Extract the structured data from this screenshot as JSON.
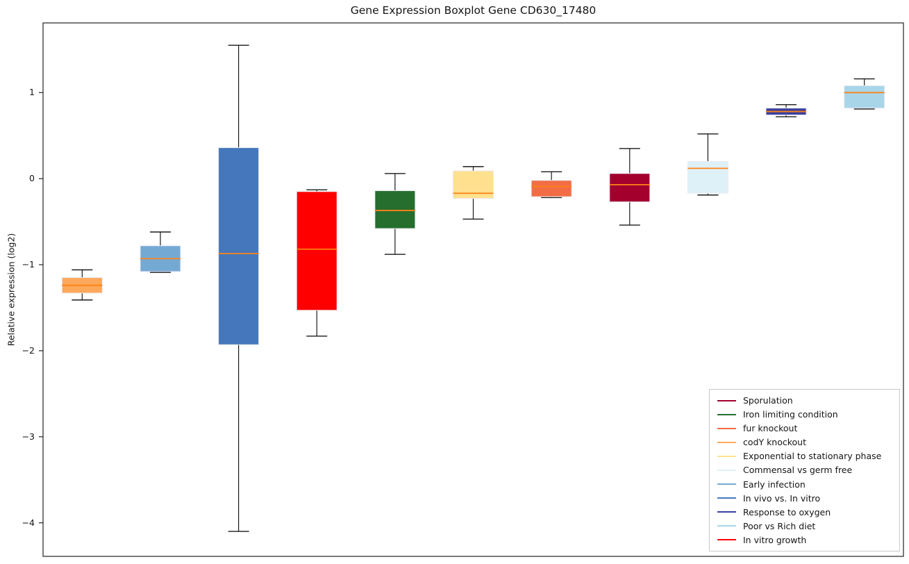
{
  "figure": {
    "title": "Gene Expression Boxplot Gene CD630_17480",
    "background_color": "#ffffff"
  },
  "chart_data": {
    "type": "boxplot",
    "title": "Gene Expression Boxplot Gene CD630_17480",
    "xlabel": "",
    "ylabel": "Relative expression (log2)",
    "ylim": [
      -4.39,
      1.81
    ],
    "yticks": [
      1,
      0,
      -1,
      -2,
      -3,
      -4
    ],
    "grid": false,
    "x_tick_labels_visible": false,
    "median_color": "#ff8215",
    "whisker_color": "#1a1a1a",
    "box_edge_color": "#e9e9f2",
    "axis_color": "#222222",
    "legend_position": "lower right",
    "boxes": [
      {
        "label": "codY knockout",
        "color": "#FDA85A",
        "whisker_low": -1.41,
        "q1": -1.33,
        "median": -1.24,
        "q3": -1.15,
        "whisker_high": -1.06
      },
      {
        "label": "Early infection",
        "color": "#74A9D4",
        "whisker_low": -1.09,
        "q1": -1.08,
        "median": -0.93,
        "q3": -0.78,
        "whisker_high": -0.62
      },
      {
        "label": "In vivo vs. In vitro",
        "color": "#4477BB",
        "whisker_low": -4.1,
        "q1": -1.93,
        "median": -0.87,
        "q3": 0.36,
        "whisker_high": 1.55
      },
      {
        "label": "In vitro growth",
        "color": "#FE0000",
        "whisker_low": -1.83,
        "q1": -1.53,
        "median": -0.82,
        "q3": -0.15,
        "whisker_high": -0.13
      },
      {
        "label": "Iron limiting condition",
        "color": "#266E2E",
        "whisker_low": -0.88,
        "q1": -0.58,
        "median": -0.37,
        "q3": -0.14,
        "whisker_high": 0.06
      },
      {
        "label": "Exponential to stationary phase",
        "color": "#FFE08E",
        "whisker_low": -0.47,
        "q1": -0.23,
        "median": -0.17,
        "q3": 0.09,
        "whisker_high": 0.14
      },
      {
        "label": "fur knockout",
        "color": "#F26D45",
        "whisker_low": -0.22,
        "q1": -0.21,
        "median": -0.09,
        "q3": -0.02,
        "whisker_high": 0.08
      },
      {
        "label": "Sporulation",
        "color": "#A3002E",
        "whisker_low": -0.54,
        "q1": -0.27,
        "median": -0.07,
        "q3": 0.06,
        "whisker_high": 0.35
      },
      {
        "label": "Commensal vs germ free",
        "color": "#DFF1F8",
        "whisker_low": -0.19,
        "q1": -0.17,
        "median": 0.12,
        "q3": 0.2,
        "whisker_high": 0.52
      },
      {
        "label": "Response to oxygen",
        "color": "#3A3F9E",
        "whisker_low": 0.72,
        "q1": 0.74,
        "median": 0.78,
        "q3": 0.82,
        "whisker_high": 0.86
      },
      {
        "label": "Poor vs Rich diet",
        "color": "#A8D6E8",
        "whisker_low": 0.81,
        "q1": 0.82,
        "median": 1.0,
        "q3": 1.08,
        "whisker_high": 1.16
      }
    ],
    "legend": [
      {
        "label": "Sporulation",
        "color": "#A3002E"
      },
      {
        "label": "Iron limiting condition",
        "color": "#266E2E"
      },
      {
        "label": "fur knockout",
        "color": "#F26D45"
      },
      {
        "label": "codY knockout",
        "color": "#FDA85A"
      },
      {
        "label": "Exponential to stationary phase",
        "color": "#FFE08E"
      },
      {
        "label": "Commensal vs germ free",
        "color": "#DFF1F8"
      },
      {
        "label": "Early infection",
        "color": "#74A9D4"
      },
      {
        "label": "In vivo vs. In vitro",
        "color": "#4477BB"
      },
      {
        "label": "Response to oxygen",
        "color": "#3A3F9E"
      },
      {
        "label": "Poor vs Rich diet",
        "color": "#A8D6E8"
      },
      {
        "label": "In vitro growth",
        "color": "#FE0000"
      }
    ]
  }
}
